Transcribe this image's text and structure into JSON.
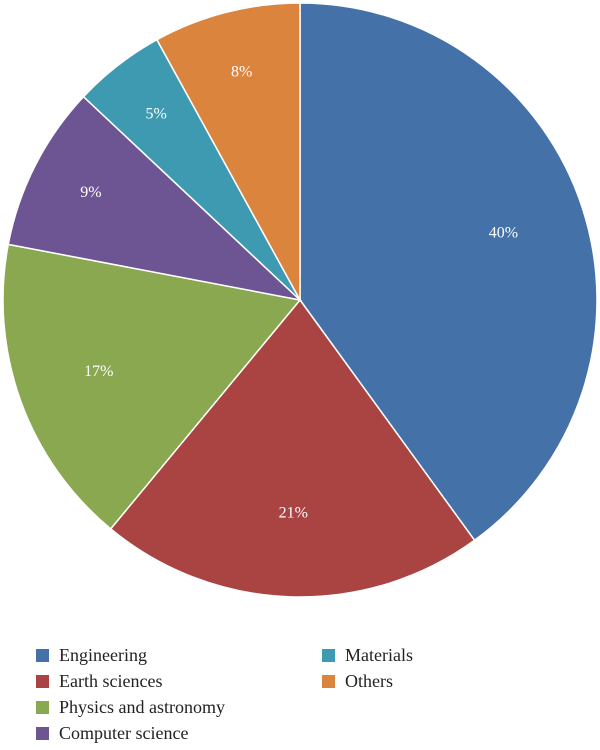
{
  "chart_data": {
    "type": "pie",
    "start_angle_deg": 0,
    "direction": "clockwise",
    "legend_placement": "bottom",
    "slices": [
      {
        "name": "Engineering",
        "value": 40,
        "label": "40%",
        "color": "#4472A8"
      },
      {
        "name": "Earth sciences",
        "value": 21,
        "label": "21%",
        "color": "#A94442"
      },
      {
        "name": "Physics and astronomy",
        "value": 17,
        "label": "17%",
        "color": "#8AA84F"
      },
      {
        "name": "Computer science",
        "value": 9,
        "label": "9%",
        "color": "#6D5594"
      },
      {
        "name": "Materials",
        "value": 5,
        "label": "5%",
        "color": "#3D9AB0"
      },
      {
        "name": "Others",
        "value": 8,
        "label": "8%",
        "color": "#DB843D"
      }
    ]
  }
}
